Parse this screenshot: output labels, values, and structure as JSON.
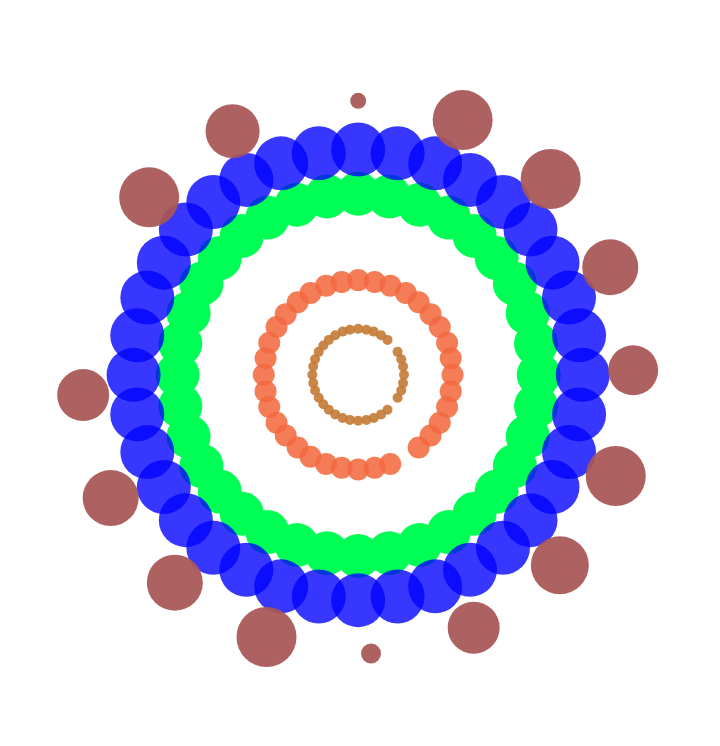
{
  "chart_data": {
    "type": "bubble",
    "tick_labels": false,
    "grid": false,
    "xlim": [
      -358,
      362
    ],
    "ylim": [
      -371,
      375
    ],
    "series": [
      {
        "color": "#a85656",
        "x": [
          0,
          114,
          -137,
          210,
          -228,
          275,
          300,
          -300,
          281,
          -270,
          220,
          -200,
          126,
          -100,
          14
        ],
        "values": [
          298,
          277,
          265,
          213,
          193,
          117,
          5,
          -22,
          -110,
          -134,
          -207,
          -226,
          -275,
          -285,
          -303
        ],
        "sizes": [
          8,
          30,
          27,
          30,
          30,
          28,
          25,
          26,
          30,
          28,
          29,
          28,
          26,
          30,
          10
        ]
      },
      {
        "color": "#0000ff",
        "x": [
          245,
          241,
          230,
          212,
          188,
          158,
          122,
          84,
          43,
          0,
          -43,
          -84,
          -122,
          -158,
          -188,
          -212,
          -230,
          -241,
          -245,
          -241,
          -230,
          -212,
          -188,
          -158,
          -122,
          -84,
          -43,
          0,
          43,
          84,
          122,
          158,
          188,
          212,
          230,
          241
        ],
        "values": [
          0,
          43,
          84,
          122,
          158,
          188,
          212,
          230,
          241,
          245,
          241,
          230,
          212,
          188,
          158,
          122,
          84,
          43,
          0,
          -43,
          -84,
          -122,
          -158,
          -188,
          -212,
          -230,
          -241,
          -245,
          -241,
          -230,
          -212,
          -188,
          -158,
          -122,
          -84,
          -43
        ],
        "sizes": [
          27,
          27,
          27,
          27,
          27,
          27,
          27,
          27,
          27,
          27,
          27,
          27,
          27,
          27,
          27,
          27,
          27,
          27,
          27,
          27,
          27,
          27,
          27,
          27,
          27,
          27,
          27,
          27,
          27,
          27,
          27,
          27,
          27,
          27,
          27,
          27
        ]
      },
      {
        "color": "#00ff55",
        "x": [
          197,
          194,
          185,
          171,
          151,
          127,
          99,
          67,
          34,
          0,
          -34,
          -67,
          -99,
          -127,
          -151,
          -171,
          -185,
          -194,
          -197,
          -194,
          -185,
          -171,
          -151,
          -127,
          -99,
          -67,
          -34,
          0,
          34,
          67,
          99,
          127,
          151,
          171,
          185,
          194
        ],
        "values": [
          0,
          34,
          67,
          99,
          127,
          151,
          171,
          185,
          194,
          197,
          194,
          185,
          171,
          151,
          127,
          99,
          67,
          34,
          0,
          -34,
          -67,
          -99,
          -127,
          -151,
          -171,
          -185,
          -194,
          -197,
          -194,
          -185,
          -171,
          -151,
          -127,
          -99,
          -67,
          -34
        ],
        "sizes": [
          22,
          22,
          22,
          22,
          22,
          22,
          22,
          22,
          22,
          22,
          22,
          22,
          22,
          22,
          22,
          22,
          22,
          22,
          22,
          22,
          22,
          22,
          22,
          22,
          22,
          22,
          22,
          22,
          22,
          22,
          22,
          22,
          22,
          22,
          22,
          22
        ]
      },
      {
        "color": "#f26a40",
        "x": [
          103,
          101,
          97,
          89,
          79,
          66,
          52,
          35,
          18,
          0,
          -18,
          -35,
          -52,
          -66,
          -79,
          -89,
          -97,
          -101,
          -103,
          -101,
          -97,
          -89,
          -79,
          -66,
          -52,
          -35,
          -18,
          0,
          18,
          35,
          66,
          79,
          89,
          97,
          101
        ],
        "values": [
          0,
          18,
          35,
          52,
          66,
          79,
          89,
          97,
          101,
          103,
          101,
          97,
          89,
          79,
          66,
          52,
          35,
          18,
          0,
          -18,
          -35,
          -52,
          -66,
          -79,
          -89,
          -97,
          -101,
          -103,
          -101,
          -97,
          -79,
          -66,
          -52,
          -35,
          -18
        ],
        "sizes": [
          11,
          11,
          11,
          11,
          11,
          11,
          11,
          11,
          11,
          11,
          11,
          11,
          11,
          11,
          11,
          11,
          11,
          11,
          11,
          11,
          11,
          11,
          11,
          11,
          11,
          11,
          11,
          11,
          11,
          11,
          11,
          11,
          11,
          11,
          11
        ]
      },
      {
        "color": "#c47a36",
        "x": [
          50,
          49,
          47,
          43,
          32,
          25,
          17,
          9,
          0,
          -9,
          -17,
          -25,
          -32,
          -38,
          -43,
          -47,
          -49,
          -50,
          -49,
          -47,
          -43,
          -38,
          -32,
          -25,
          -17,
          -9,
          0,
          9,
          17,
          25,
          32,
          43,
          47,
          49
        ],
        "values": [
          0,
          9,
          17,
          25,
          38,
          43,
          47,
          49,
          50,
          49,
          47,
          43,
          38,
          32,
          25,
          17,
          9,
          0,
          -9,
          -17,
          -25,
          -32,
          -38,
          -43,
          -47,
          -49,
          -50,
          -49,
          -47,
          -43,
          -38,
          -25,
          -17,
          -9
        ],
        "sizes": [
          5,
          5,
          5,
          5,
          5,
          5,
          5,
          5,
          5,
          5,
          5,
          5,
          5,
          5,
          5,
          5,
          5,
          5,
          5,
          5,
          5,
          5,
          5,
          5,
          5,
          5,
          5,
          5,
          5,
          5,
          5,
          5,
          5,
          5
        ]
      }
    ]
  }
}
